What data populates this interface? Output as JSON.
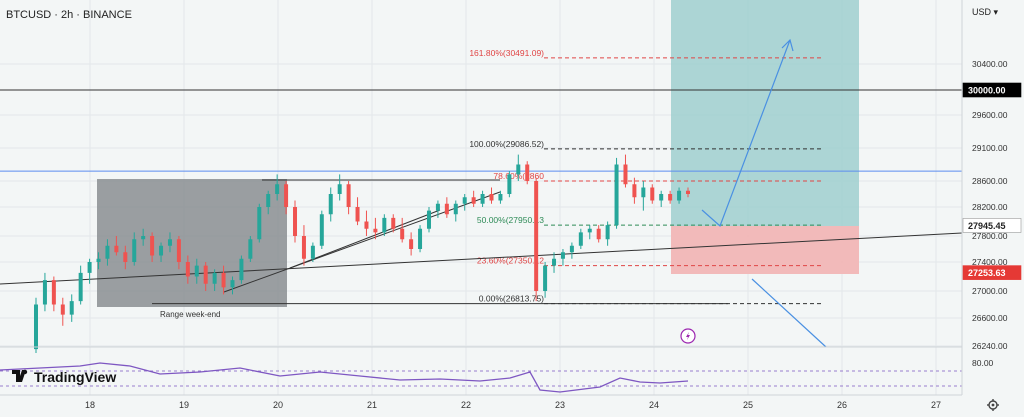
{
  "header": {
    "symbol": "BTCUSD",
    "interval": "2h",
    "exchange": "BINANCE",
    "currency": "USD"
  },
  "currency_label": "USD ▾",
  "title_text": "BTCUSD · 2h · BINANCE",
  "fib_levels": [
    {
      "ratio": "161.80%",
      "price": 30491.09,
      "label": "161.80%(30491.09)",
      "color": "#e04545"
    },
    {
      "ratio": "100.00%",
      "price": 29086.52,
      "label": "100.00%(29086.52)",
      "color": "#333333"
    },
    {
      "ratio": "78.60%",
      "price": 28600,
      "label": "78.60%(2860",
      "color": "#e04545"
    },
    {
      "ratio": "50.00%",
      "price": 27950.13,
      "label": "50.00%(27950.13",
      "color": "#2e8b57"
    },
    {
      "ratio": "23.60%",
      "price": 27350.12,
      "label": "23.60%(27350.12",
      "color": "#e04545"
    },
    {
      "ratio": "0.00%",
      "price": 26813.75,
      "label": "0.00%(26813.75)",
      "color": "#333333"
    }
  ],
  "range_label": "Range week-end",
  "price_ticks": [
    "30400.00",
    "29600.00",
    "29100.00",
    "28600.00",
    "28200.00",
    "27800.00",
    "27400.00",
    "27000.00",
    "26600.00",
    "26240.00"
  ],
  "rsi_tick": "80.00",
  "key_labels": [
    {
      "text": "30000.00",
      "bg": "#000000",
      "fg": "#ffffff"
    },
    {
      "text": "27945.45",
      "bg": "#ffffff",
      "fg": "#222222"
    },
    {
      "text": "27253.63",
      "bg": "#e53935",
      "fg": "#ffffff"
    }
  ],
  "x_ticks": [
    "18",
    "19",
    "20",
    "21",
    "22",
    "23",
    "24",
    "25",
    "26",
    "27"
  ],
  "logo_text": "TradingView",
  "colors": {
    "up": "#26a69a",
    "down": "#ef5350",
    "rsi": "#7e57c2",
    "profit_zone": "#9fcfcf",
    "loss_zone": "#f2b4b4",
    "range_box": "#8a8e92",
    "arrow": "#4a90e2",
    "blue_line": "#5b8def"
  },
  "chart_data": {
    "type": "candlestick",
    "symbol": "BTCUSD",
    "interval": "2h",
    "y_axis_ticks": [
      26240,
      26600,
      27000,
      27400,
      27800,
      28200,
      28600,
      29100,
      29600,
      30400
    ],
    "ylim": [
      26240,
      30400
    ],
    "x_ticks": [
      "18",
      "19",
      "20",
      "21",
      "22",
      "23",
      "24",
      "25",
      "26",
      "27"
    ],
    "horizontal_levels": [
      30000.0,
      28750,
      26813.75
    ],
    "position": {
      "entry": 27945.45,
      "stop": 27253.63,
      "target": 31200
    },
    "fibonacci": {
      "0.00%": 26813.75,
      "23.60%": 27350.12,
      "50.00%": 27950.13,
      "78.60%": 28600,
      "100.00%": 29086.52,
      "161.80%": 30491.09
    },
    "candles": [
      [
        26200,
        26900,
        26150,
        26800
      ],
      [
        26800,
        27250,
        26700,
        27150
      ],
      [
        27150,
        27200,
        26700,
        26800
      ],
      [
        26800,
        26900,
        26500,
        26650
      ],
      [
        26650,
        26950,
        26550,
        26850
      ],
      [
        26850,
        27350,
        26800,
        27250
      ],
      [
        27250,
        27450,
        27100,
        27400
      ],
      [
        27400,
        27550,
        27300,
        27450
      ],
      [
        27450,
        27750,
        27350,
        27650
      ],
      [
        27650,
        27800,
        27500,
        27550
      ],
      [
        27550,
        27650,
        27300,
        27400
      ],
      [
        27400,
        27850,
        27350,
        27750
      ],
      [
        27750,
        27900,
        27650,
        27800
      ],
      [
        27800,
        27850,
        27400,
        27500
      ],
      [
        27500,
        27700,
        27400,
        27650
      ],
      [
        27650,
        27850,
        27550,
        27750
      ],
      [
        27750,
        27800,
        27300,
        27400
      ],
      [
        27400,
        27500,
        27100,
        27200
      ],
      [
        27200,
        27450,
        27100,
        27350
      ],
      [
        27350,
        27400,
        27000,
        27100
      ],
      [
        27100,
        27300,
        27000,
        27250
      ],
      [
        27250,
        27350,
        26950,
        27050
      ],
      [
        27050,
        27200,
        26950,
        27150
      ],
      [
        27150,
        27500,
        27100,
        27450
      ],
      [
        27450,
        27800,
        27400,
        27750
      ],
      [
        27750,
        28250,
        27700,
        28200
      ],
      [
        28200,
        28450,
        28100,
        28400
      ],
      [
        28400,
        28700,
        28300,
        28550
      ],
      [
        28550,
        28600,
        28100,
        28200
      ],
      [
        28200,
        28300,
        27700,
        27800
      ],
      [
        27800,
        27950,
        27350,
        27450
      ],
      [
        27450,
        27700,
        27400,
        27650
      ],
      [
        27650,
        28150,
        27600,
        28100
      ],
      [
        28100,
        28500,
        28000,
        28400
      ],
      [
        28400,
        28700,
        28300,
        28550
      ],
      [
        28550,
        28600,
        28100,
        28200
      ],
      [
        28200,
        28350,
        27950,
        28000
      ],
      [
        28000,
        28150,
        27800,
        27900
      ],
      [
        27900,
        28050,
        27750,
        27850
      ],
      [
        27850,
        28100,
        27800,
        28050
      ],
      [
        28050,
        28100,
        27850,
        27900
      ],
      [
        27900,
        28050,
        27700,
        27750
      ],
      [
        27750,
        27850,
        27500,
        27600
      ],
      [
        27600,
        27950,
        27550,
        27900
      ],
      [
        27900,
        28200,
        27850,
        28150
      ],
      [
        28150,
        28300,
        28050,
        28250
      ],
      [
        28250,
        28350,
        28050,
        28100
      ],
      [
        28100,
        28300,
        28000,
        28250
      ],
      [
        28250,
        28400,
        28150,
        28350
      ],
      [
        28350,
        28450,
        28200,
        28250
      ],
      [
        28250,
        28450,
        28200,
        28400
      ],
      [
        28400,
        28500,
        28250,
        28300
      ],
      [
        28300,
        28450,
        28250,
        28400
      ],
      [
        28400,
        28750,
        28350,
        28700
      ],
      [
        28700,
        29000,
        28600,
        28850
      ],
      [
        28850,
        28900,
        28550,
        28600
      ],
      [
        28600,
        28650,
        26850,
        27000
      ],
      [
        27000,
        27400,
        26900,
        27350
      ],
      [
        27350,
        27550,
        27250,
        27450
      ],
      [
        27450,
        27600,
        27350,
        27550
      ],
      [
        27550,
        27700,
        27450,
        27650
      ],
      [
        27650,
        27900,
        27600,
        27850
      ],
      [
        27850,
        27950,
        27750,
        27900
      ],
      [
        27900,
        27950,
        27700,
        27750
      ],
      [
        27750,
        28000,
        27650,
        27950
      ],
      [
        27950,
        28950,
        27900,
        28850
      ],
      [
        28850,
        29000,
        28500,
        28550
      ],
      [
        28550,
        28650,
        28250,
        28350
      ],
      [
        28350,
        28600,
        28150,
        28500
      ],
      [
        28500,
        28550,
        28250,
        28300
      ],
      [
        28300,
        28450,
        28200,
        28400
      ],
      [
        28400,
        28450,
        28250,
        28300
      ],
      [
        28300,
        28500,
        28250,
        28450
      ],
      [
        28450,
        28500,
        28350,
        28400
      ]
    ]
  }
}
